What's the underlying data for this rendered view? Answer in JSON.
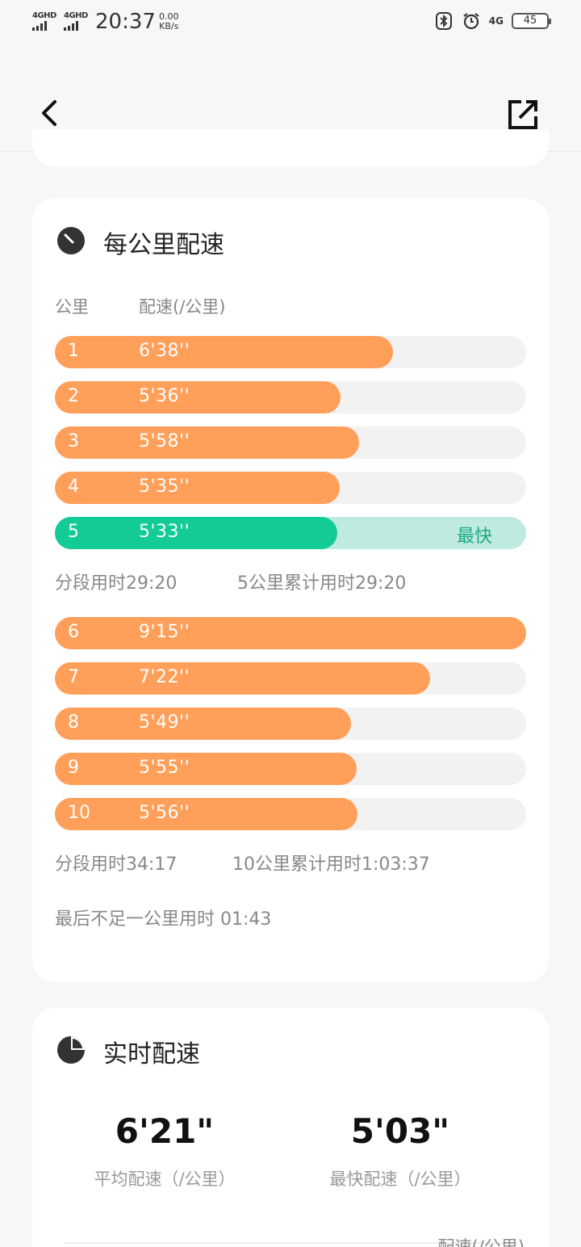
{
  "status_bar": {
    "sig1_label": "4GHD",
    "sig2_label": "4GHD",
    "time": "20:37",
    "speed_value": "0.00",
    "speed_unit": "KB/s",
    "network_label": "4G",
    "battery": "45",
    "icons": [
      "bluetooth-icon",
      "alarm-icon"
    ]
  },
  "nav": {
    "back_icon": "chevron-left-icon",
    "share_icon": "share-external-icon"
  },
  "pace_card": {
    "title": "每公里配速",
    "col_km": "公里",
    "col_pace": "配速(/公里)",
    "max_pace_seconds": 555,
    "group1": [
      {
        "km": "1",
        "pace": "6'38''",
        "seconds": 398
      },
      {
        "km": "2",
        "pace": "5'36''",
        "seconds": 336
      },
      {
        "km": "3",
        "pace": "5'58''",
        "seconds": 358
      },
      {
        "km": "4",
        "pace": "5'35''",
        "seconds": 335
      },
      {
        "km": "5",
        "pace": "5'33''",
        "seconds": 333,
        "best": true,
        "tag": "最快"
      }
    ],
    "group1_segment": "分段用时29:20",
    "group1_cumulative": "5公里累计用时29:20",
    "group2": [
      {
        "km": "6",
        "pace": "9'15''",
        "seconds": 555
      },
      {
        "km": "7",
        "pace": "7'22''",
        "seconds": 442
      },
      {
        "km": "8",
        "pace": "5'49''",
        "seconds": 349
      },
      {
        "km": "9",
        "pace": "5'55''",
        "seconds": 355
      },
      {
        "km": "10",
        "pace": "5'56''",
        "seconds": 356
      }
    ],
    "group2_segment": "分段用时34:17",
    "group2_cumulative": "10公里累计用时1:03:37",
    "last_partial": "最后不足一公里用时 01:43",
    "colors": {
      "bar": "#ff9f5a",
      "best": "#13cb94",
      "track": "#f2f2f2",
      "best_track": "#bfeae0"
    }
  },
  "realtime_card": {
    "title": "实时配速",
    "avg_value": "6'21\"",
    "avg_label": "平均配速（/公里）",
    "fast_value": "5'03\"",
    "fast_label": "最快配速（/公里）",
    "table_head": "配速(/公里)"
  }
}
